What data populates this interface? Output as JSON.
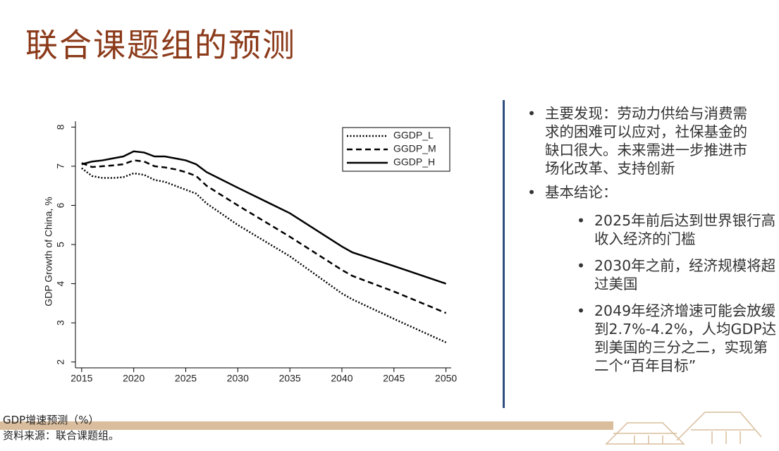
{
  "title": "联合课题组的预测",
  "bullets": [
    "主要发现：劳动力供给与消费需求的困难可以应对，社保基金的缺口很大。未来需进一步推进市场化改革、支持创新",
    "基本结论："
  ],
  "sub_bullets": [
    "2025年前后达到世界银行高收入经济的门槛",
    "2030年之前，经济规模将超过美国",
    "2049年经济增速可能会放缓到2.7%-4.2%，人均GDP达到美国的三分之二，实现第二个“百年目标”"
  ],
  "caption": "GDP增速预测（%）",
  "source": "资料来源：联合课题组。",
  "chart_data": {
    "type": "line",
    "y_label": "GDP Growth of China, %",
    "x": [
      2015,
      2016,
      2017,
      2018,
      2019,
      2020,
      2021,
      2022,
      2023,
      2024,
      2025,
      2026,
      2027,
      2030,
      2035,
      2040,
      2041,
      2045,
      2050
    ],
    "series": [
      {
        "name": "GGDP_L",
        "color": "#000000",
        "style": "dotted",
        "values": [
          6.95,
          6.75,
          6.7,
          6.7,
          6.72,
          6.82,
          6.78,
          6.65,
          6.6,
          6.5,
          6.4,
          6.3,
          6.05,
          5.5,
          4.7,
          3.75,
          3.6,
          3.1,
          2.5
        ]
      },
      {
        "name": "GGDP_M",
        "color": "#000000",
        "style": "dashed",
        "values": [
          7.08,
          6.98,
          7.0,
          7.02,
          7.05,
          7.15,
          7.12,
          7.0,
          6.97,
          6.92,
          6.85,
          6.75,
          6.5,
          6.0,
          5.2,
          4.35,
          4.2,
          3.8,
          3.25
        ]
      },
      {
        "name": "GGDP_H",
        "color": "#000000",
        "style": "solid",
        "values": [
          7.05,
          7.12,
          7.15,
          7.2,
          7.25,
          7.38,
          7.35,
          7.25,
          7.25,
          7.2,
          7.15,
          7.05,
          6.85,
          6.45,
          5.8,
          4.95,
          4.8,
          4.45,
          4.0
        ]
      }
    ],
    "xlim": [
      2014.4,
      2050.5
    ],
    "ylim": [
      1.85,
      8.15
    ],
    "xticks": [
      2015,
      2020,
      2025,
      2030,
      2035,
      2040,
      2045,
      2050
    ],
    "yticks": [
      2,
      3,
      4,
      5,
      6,
      7,
      8
    ],
    "legend": "top-right"
  }
}
